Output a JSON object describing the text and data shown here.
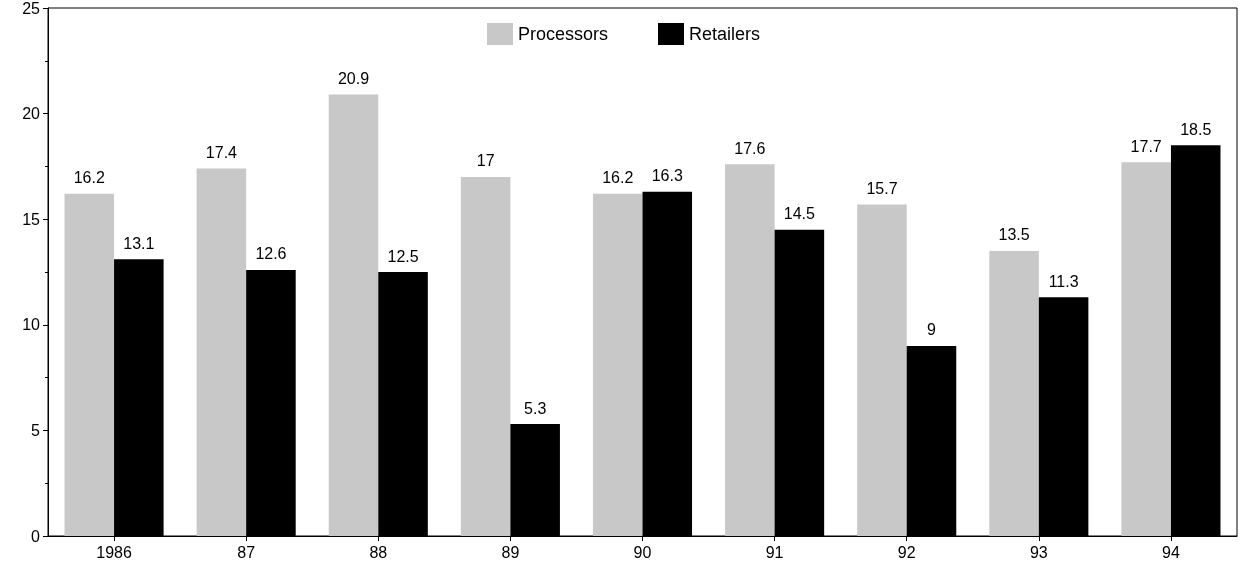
{
  "chart_data": {
    "type": "bar",
    "categories": [
      "1986",
      "87",
      "88",
      "89",
      "90",
      "91",
      "92",
      "93",
      "94"
    ],
    "series": [
      {
        "name": "Processors",
        "color": "#c8c8c8",
        "values": [
          16.2,
          17.4,
          20.9,
          17,
          16.2,
          17.6,
          15.7,
          13.5,
          17.7
        ]
      },
      {
        "name": "Retailers",
        "color": "#000000",
        "values": [
          13.1,
          12.6,
          12.5,
          5.3,
          16.3,
          14.5,
          9,
          11.3,
          18.5
        ]
      }
    ],
    "ylim": [
      0,
      25
    ],
    "yticks": [
      0,
      5,
      10,
      15,
      20,
      25
    ],
    "grid": false,
    "legend": "top",
    "data_labels": true
  }
}
